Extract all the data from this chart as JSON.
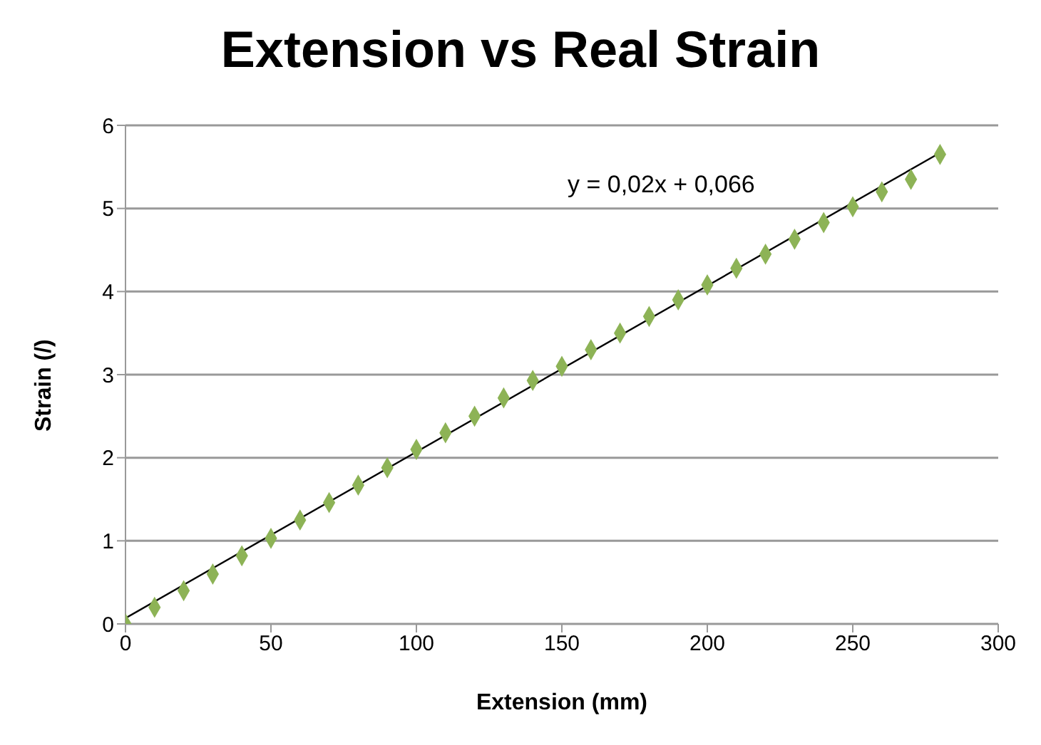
{
  "chart_data": {
    "type": "scatter",
    "title": "Extension vs Real Strain",
    "xlabel": "Extension (mm)",
    "ylabel": "Strain (/)",
    "annotations": [
      "y = 0,02x + 0,066"
    ],
    "series": [
      {
        "color": "#8db356",
        "marker": "diamond",
        "x": [
          0,
          10,
          20,
          30,
          40,
          50,
          60,
          70,
          80,
          90,
          100,
          110,
          120,
          130,
          140,
          150,
          160,
          170,
          180,
          190,
          200,
          210,
          220,
          230,
          240,
          250,
          260,
          270,
          280
        ],
        "values": [
          0,
          0.2,
          0.4,
          0.6,
          0.82,
          1.03,
          1.25,
          1.46,
          1.67,
          1.88,
          2.1,
          2.3,
          2.5,
          2.72,
          2.93,
          3.1,
          3.3,
          3.5,
          3.7,
          3.9,
          4.08,
          4.28,
          4.45,
          4.63,
          4.83,
          5.02,
          5.2,
          5.35,
          5.65
        ]
      },
      {
        "type": "line",
        "color": "#000000",
        "x": [
          0,
          280
        ],
        "values": [
          0.07,
          5.67
        ]
      }
    ],
    "xlim": [
      0,
      300
    ],
    "xticks": [
      0,
      50,
      100,
      150,
      200,
      250,
      300
    ],
    "ylim": [
      0,
      6
    ],
    "yticks": [
      0,
      1,
      2,
      3,
      4,
      5,
      6
    ],
    "grid": "y"
  }
}
